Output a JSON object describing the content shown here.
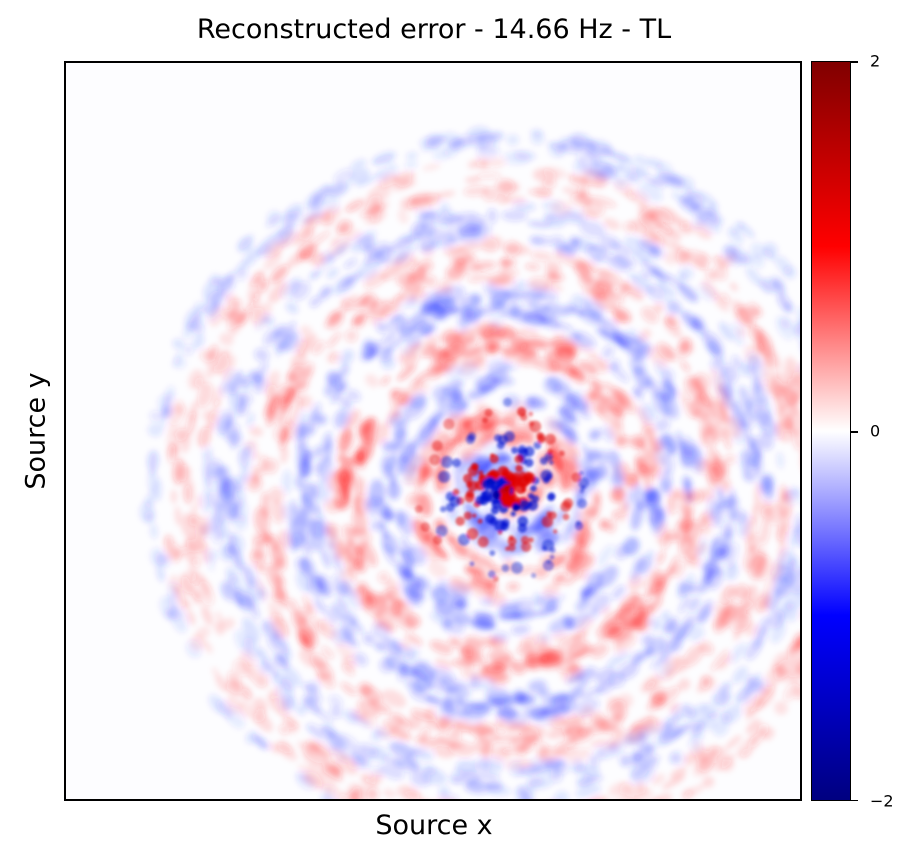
{
  "chart_data": {
    "type": "heatmap",
    "title": "Reconstructed error - 14.66 Hz - TL",
    "xlabel": "Source x",
    "ylabel": "Source y",
    "colormap": [
      "#000080",
      "#0000ff",
      "#ffffff",
      "#ff0000",
      "#800000"
    ],
    "colorbar": {
      "range": [
        -2,
        2
      ],
      "ticks": [
        {
          "value": 2,
          "label": "2"
        },
        {
          "value": 0,
          "label": "0"
        },
        {
          "value": -2,
          "label": "−2"
        }
      ]
    },
    "x_ticks": [],
    "y_ticks": [],
    "description_of_field": "concentric ring-shaped oscillating error centered near middle, strongest at center"
  }
}
